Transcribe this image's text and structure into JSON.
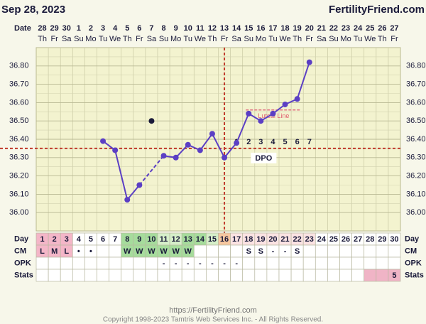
{
  "header": {
    "date": "Sep 28, 2023",
    "site": "FertilityFriend.com"
  },
  "chart_data": {
    "type": "line",
    "row_labels": {
      "date": "Date",
      "day": "Day",
      "cm": "CM",
      "opk": "OPK",
      "stats": "Stats"
    },
    "dates": [
      28,
      29,
      30,
      1,
      2,
      3,
      4,
      5,
      6,
      7,
      8,
      9,
      10,
      11,
      12,
      13,
      14,
      15,
      16,
      17,
      18,
      19,
      20,
      21,
      22,
      23,
      24,
      25,
      26,
      27
    ],
    "weekdays": [
      "Th",
      "Fr",
      "Sa",
      "Su",
      "Mo",
      "Tu",
      "We",
      "Th",
      "Fr",
      "Sa",
      "Su",
      "Mo",
      "Tu",
      "We",
      "Th",
      "Fr",
      "Sa",
      "Su",
      "Mo",
      "Tu",
      "We",
      "Th",
      "Fr",
      "Sa",
      "Su",
      "Mo",
      "Tu",
      "We",
      "Th",
      "Fr"
    ],
    "days": [
      1,
      2,
      3,
      4,
      5,
      6,
      7,
      8,
      9,
      10,
      11,
      12,
      13,
      14,
      15,
      16,
      17,
      18,
      19,
      20,
      21,
      22,
      23,
      24,
      25,
      26,
      27,
      28,
      29,
      30
    ],
    "values": [
      null,
      null,
      null,
      null,
      null,
      36.39,
      36.34,
      36.07,
      36.15,
      null,
      36.31,
      36.3,
      36.37,
      36.34,
      36.43,
      36.3,
      36.38,
      36.54,
      36.5,
      36.54,
      36.59,
      36.62,
      36.82,
      null,
      null,
      null,
      null,
      null,
      null,
      null
    ],
    "discarded_values": [
      null,
      null,
      null,
      null,
      null,
      null,
      null,
      null,
      null,
      36.5,
      null,
      null,
      null,
      null,
      null,
      null,
      null,
      null,
      null,
      null,
      null,
      null,
      null,
      null,
      null,
      null,
      null,
      null,
      null,
      null
    ],
    "color": "#5b3fc4",
    "ylim": [
      35.9,
      36.9
    ],
    "yticks": [
      {
        "value": 36.0,
        "label": "36.00"
      },
      {
        "value": 36.1,
        "label": "36.10"
      },
      {
        "value": 36.2,
        "label": "36.20"
      },
      {
        "value": 36.3,
        "label": "36.30"
      },
      {
        "value": 36.4,
        "label": "36.40"
      },
      {
        "value": 36.5,
        "label": "36.50"
      },
      {
        "value": 36.6,
        "label": "36.60"
      },
      {
        "value": 36.7,
        "label": "36.70"
      },
      {
        "value": 36.8,
        "label": "36.80"
      }
    ],
    "coverline": 36.35,
    "ovulation_day": 16,
    "dpo": [
      1,
      2,
      3,
      4,
      5,
      6,
      7
    ],
    "dpo_label": "DPO",
    "luteal_line": {
      "label": "Luteal Line",
      "value": 36.56
    },
    "cm": [
      "L",
      "M",
      "L",
      "•",
      "•",
      null,
      null,
      "W",
      "W",
      "W",
      "W",
      "W",
      "W",
      null,
      null,
      null,
      null,
      "S",
      "S",
      "-",
      "-",
      "S",
      null,
      null,
      null,
      null,
      null,
      null,
      null,
      null
    ],
    "opk": [
      null,
      null,
      null,
      null,
      null,
      null,
      null,
      null,
      null,
      null,
      "-",
      "-",
      "-",
      "-",
      "-",
      "-",
      "-",
      null,
      null,
      null,
      null,
      null,
      null,
      null,
      null,
      null,
      null,
      null,
      null,
      null
    ],
    "stats": [
      null,
      null,
      null,
      null,
      null,
      null,
      null,
      null,
      null,
      null,
      null,
      null,
      null,
      null,
      null,
      null,
      null,
      null,
      null,
      null,
      null,
      null,
      null,
      null,
      null,
      null,
      null,
      null,
      null,
      5
    ],
    "day_colors": [
      "#f4b6c8",
      "#f4b6c8",
      "#f4b6c8",
      "#ffffff",
      "#ffffff",
      "#ffffff",
      "#ffffff",
      "#a6dc9c",
      "#a6dc9c",
      "#a6dc9c",
      "#d6efc9",
      "#d6efc9",
      "#a6dc9c",
      "#a6dc9c",
      "#d6efc9",
      "#f6c7a0",
      "#fbe3e3",
      "#fbe3e3",
      "#fbe3e3",
      "#fbe3e3",
      "#fbe3e3",
      "#fbe3e3",
      "#fbe3e3",
      "#ffffff",
      "#ffffff",
      "#ffffff",
      "#ffffff",
      "#ffffff",
      "#ffffff",
      "#ffffff"
    ],
    "cm_colors": [
      "#f4b6c8",
      "#f4b6c8",
      "#f4b6c8",
      "#ffffff",
      "#ffffff",
      "#ffffff",
      "#ffffff",
      "#a6dc9c",
      "#a6dc9c",
      "#a6dc9c",
      "#a6dc9c",
      "#a6dc9c",
      "#a6dc9c",
      "#ffffff",
      "#ffffff",
      "#ffffff",
      "#ffffff",
      "#ffffff",
      "#ffffff",
      "#ffffff",
      "#ffffff",
      "#ffffff",
      "#ffffff",
      "#ffffff",
      "#ffffff",
      "#ffffff",
      "#ffffff",
      "#ffffff",
      "#ffffff",
      "#ffffff"
    ],
    "stats_colors": [
      "#ffffff",
      "#ffffff",
      "#ffffff",
      "#ffffff",
      "#ffffff",
      "#ffffff",
      "#ffffff",
      "#ffffff",
      "#ffffff",
      "#ffffff",
      "#ffffff",
      "#ffffff",
      "#ffffff",
      "#ffffff",
      "#ffffff",
      "#ffffff",
      "#ffffff",
      "#ffffff",
      "#ffffff",
      "#ffffff",
      "#ffffff",
      "#ffffff",
      "#ffffff",
      "#ffffff",
      "#ffffff",
      "#ffffff",
      "#ffffff",
      "#f0b4c6",
      "#f0b4c6",
      "#f0b4c6"
    ]
  },
  "footer": {
    "url": "https://FertilityFriend.com",
    "copyright": "Copyright 1998-2023 Tamtris Web Services Inc. - All Rights Reserved."
  }
}
